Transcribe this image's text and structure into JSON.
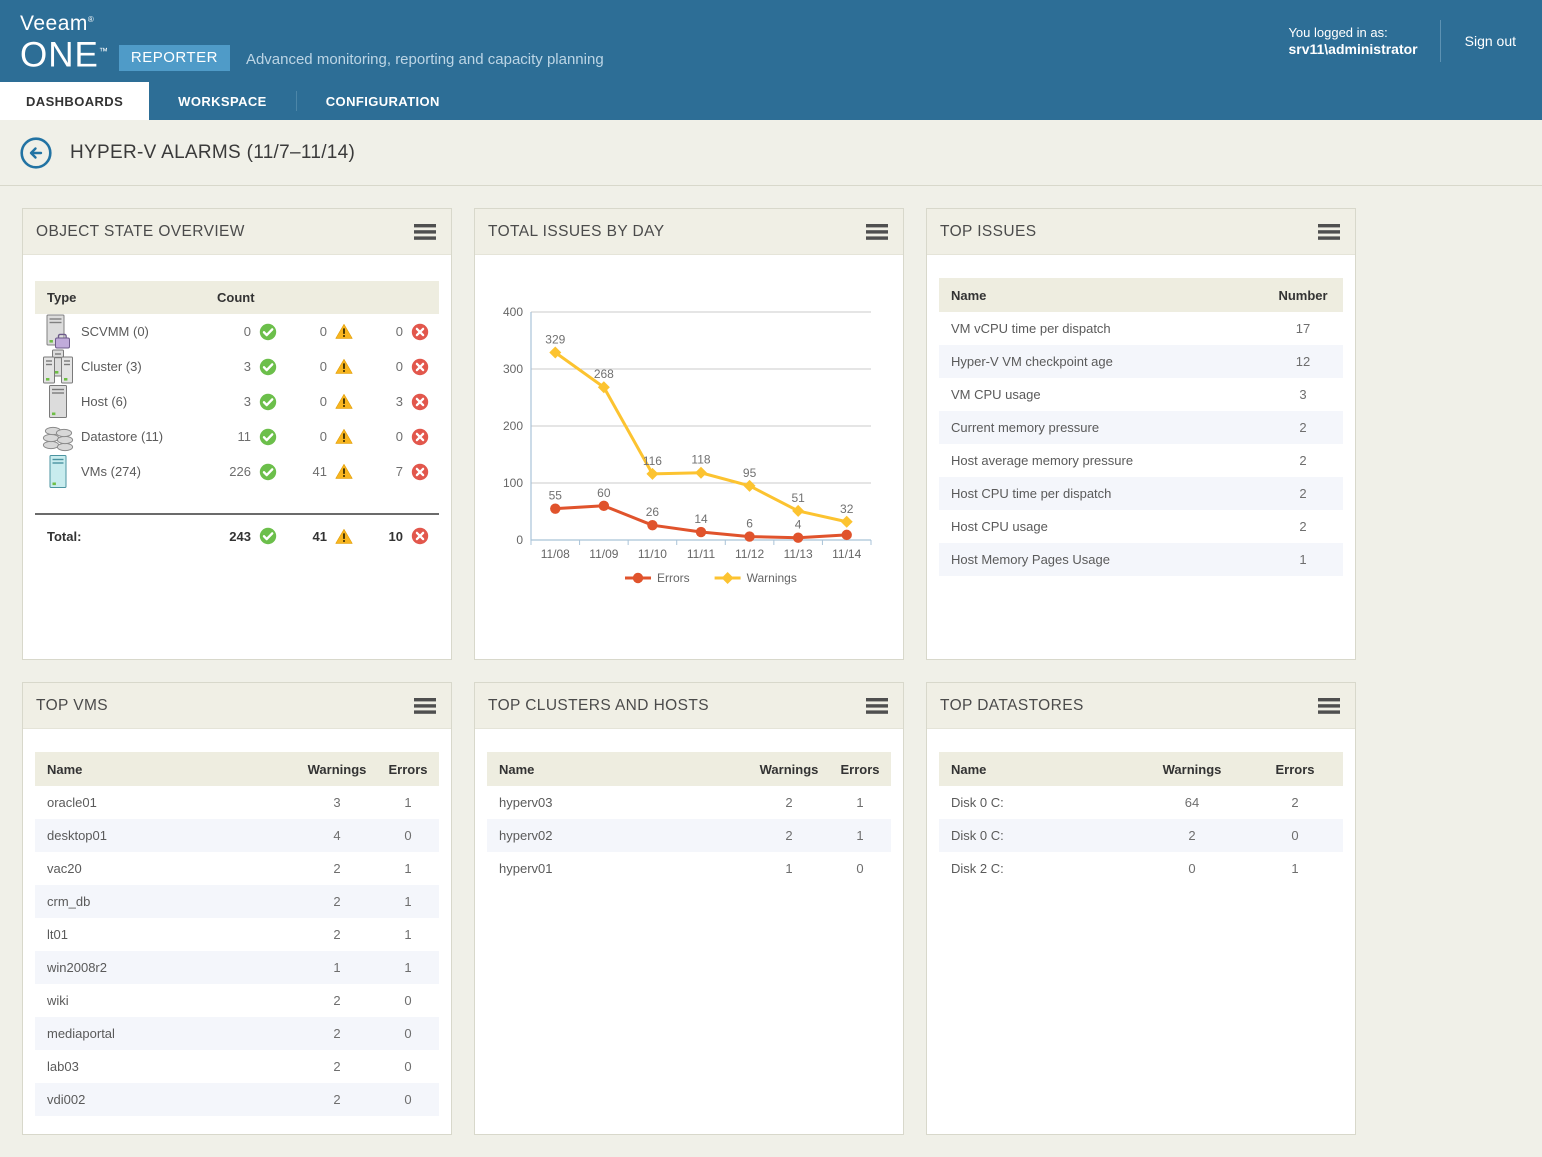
{
  "header": {
    "brand_line1": "Veeam",
    "brand_reg": "®",
    "brand_line2": "ONE",
    "brand_tm": "™",
    "brand_badge": "REPORTER",
    "tagline": "Advanced monitoring, reporting and capacity planning",
    "logged_in_label": "You logged in as:",
    "logged_in_user": "srv11\\administrator",
    "sign_out_label": "Sign out"
  },
  "nav": {
    "tabs": [
      {
        "label": "DASHBOARDS",
        "active": true
      },
      {
        "label": "WORKSPACE",
        "active": false
      },
      {
        "label": "CONFIGURATION",
        "active": false
      }
    ]
  },
  "page": {
    "title": "HYPER-V ALARMS (11/7–11/14)"
  },
  "panels": {
    "object_state": {
      "title": "OBJECT STATE OVERVIEW",
      "columns": {
        "type": "Type",
        "count": "Count"
      },
      "rows": [
        {
          "icon": "scvmm-icon",
          "label": "SCVMM (0)",
          "ok": 0,
          "warnings": 0,
          "errors": 0
        },
        {
          "icon": "cluster-icon",
          "label": "Cluster (3)",
          "ok": 3,
          "warnings": 0,
          "errors": 0
        },
        {
          "icon": "host-icon",
          "label": "Host (6)",
          "ok": 3,
          "warnings": 0,
          "errors": 3
        },
        {
          "icon": "datastore-icon",
          "label": "Datastore (11)",
          "ok": 11,
          "warnings": 0,
          "errors": 0
        },
        {
          "icon": "vm-icon",
          "label": "VMs (274)",
          "ok": 226,
          "warnings": 41,
          "errors": 7
        }
      ],
      "total": {
        "label": "Total:",
        "ok": 243,
        "warnings": 41,
        "errors": 10
      }
    },
    "issues_by_day": {
      "title": "TOTAL ISSUES BY DAY"
    },
    "top_issues": {
      "title": "TOP ISSUES",
      "columns": [
        "Name",
        "Number"
      ],
      "rows": [
        {
          "name": "VM vCPU time per dispatch",
          "number": 17
        },
        {
          "name": "Hyper-V VM checkpoint age",
          "number": 12
        },
        {
          "name": "VM CPU usage",
          "number": 3
        },
        {
          "name": "Current memory pressure",
          "number": 2
        },
        {
          "name": "Host average memory pressure",
          "number": 2
        },
        {
          "name": "Host CPU time per dispatch",
          "number": 2
        },
        {
          "name": "Host CPU usage",
          "number": 2
        },
        {
          "name": "Host Memory Pages Usage",
          "number": 1
        }
      ]
    },
    "top_vms": {
      "title": "TOP VMS",
      "columns": [
        "Name",
        "Warnings",
        "Errors"
      ],
      "rows": [
        {
          "name": "oracle01",
          "warnings": 3,
          "errors": 1
        },
        {
          "name": "desktop01",
          "warnings": 4,
          "errors": 0
        },
        {
          "name": "vac20",
          "warnings": 2,
          "errors": 1
        },
        {
          "name": "crm_db",
          "warnings": 2,
          "errors": 1
        },
        {
          "name": "lt01",
          "warnings": 2,
          "errors": 1
        },
        {
          "name": "win2008r2",
          "warnings": 1,
          "errors": 1
        },
        {
          "name": "wiki",
          "warnings": 2,
          "errors": 0
        },
        {
          "name": "mediaportal",
          "warnings": 2,
          "errors": 0
        },
        {
          "name": "lab03",
          "warnings": 2,
          "errors": 0
        },
        {
          "name": "vdi002",
          "warnings": 2,
          "errors": 0
        }
      ]
    },
    "top_clusters": {
      "title": "TOP CLUSTERS AND HOSTS",
      "columns": [
        "Name",
        "Warnings",
        "Errors"
      ],
      "rows": [
        {
          "name": "hyperv03",
          "warnings": 2,
          "errors": 1
        },
        {
          "name": "hyperv02",
          "warnings": 2,
          "errors": 1
        },
        {
          "name": "hyperv01",
          "warnings": 1,
          "errors": 0
        }
      ]
    },
    "top_datastores": {
      "title": "TOP DATASTORES",
      "columns": [
        "Name",
        "Warnings",
        "Errors"
      ],
      "rows": [
        {
          "name": "Disk 0 C:",
          "warnings": 64,
          "errors": 2
        },
        {
          "name": "Disk 0 C:",
          "warnings": 2,
          "errors": 0
        },
        {
          "name": "Disk 2 C:",
          "warnings": 0,
          "errors": 1
        }
      ]
    }
  },
  "chart_data": {
    "type": "line",
    "title": "TOTAL ISSUES BY DAY",
    "x": [
      "11/08",
      "11/09",
      "11/10",
      "11/11",
      "11/12",
      "11/13",
      "11/14"
    ],
    "series": [
      {
        "name": "Errors",
        "color": "#e0532c",
        "marker": "circle",
        "values": [
          55,
          60,
          26,
          14,
          6,
          4,
          9
        ]
      },
      {
        "name": "Warnings",
        "color": "#fcc330",
        "marker": "diamond",
        "values": [
          329,
          268,
          116,
          118,
          95,
          51,
          32
        ]
      }
    ],
    "ylim": [
      0,
      400
    ],
    "yticks": [
      0,
      100,
      200,
      300,
      400
    ],
    "grid": true,
    "legend_position": "bottom",
    "show_point_labels": true
  },
  "colors": {
    "header_blue": "#2d6e96",
    "badge_blue": "#4f9bc8",
    "page_bg": "#f0f0e8",
    "panel_header_bg": "#f0efe5",
    "table_header_bg": "#eeede0",
    "row_alt_bg": "#f4f6fb",
    "ok_green": "#6cbf4b",
    "warning_yellow": "#f8b51f",
    "error_red": "#e2574c",
    "accent_blue": "#2273a3"
  }
}
